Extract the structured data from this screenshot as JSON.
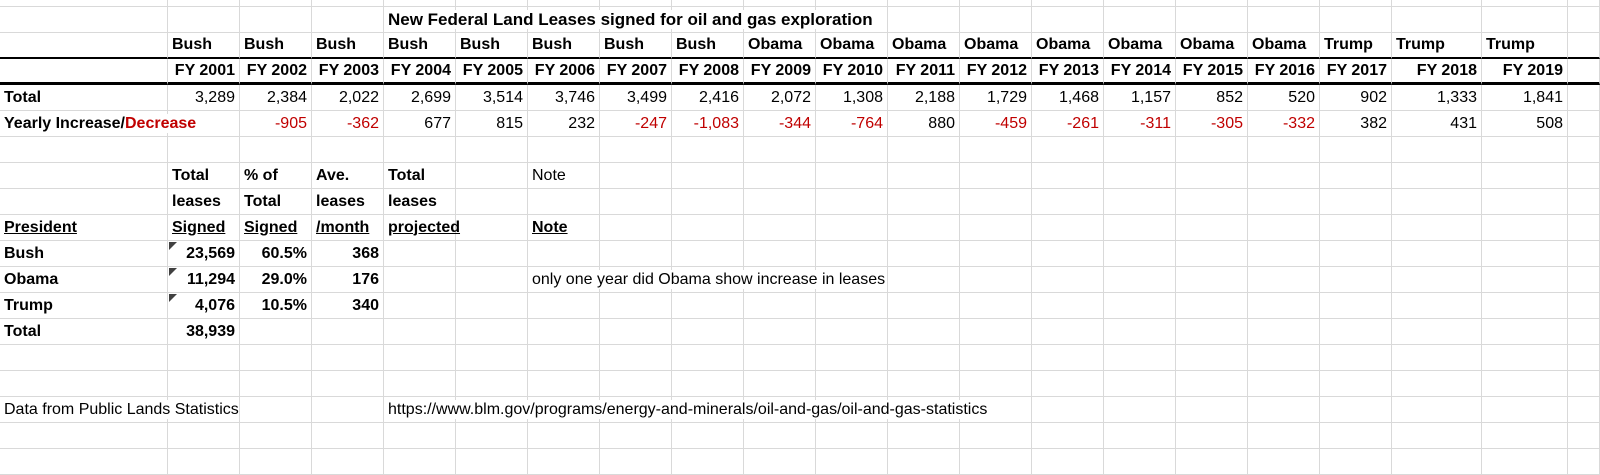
{
  "title": "New Federal Land Leases signed for oil and gas exploration",
  "lease_table": {
    "row_labels": {
      "total": "Total",
      "yearly_change_prefix": "Yearly Increase/",
      "yearly_change_suffix": "Decrease"
    },
    "columns": [
      {
        "president": "Bush",
        "fiscal_year": "FY 2001",
        "total": "3,289",
        "change": ""
      },
      {
        "president": "Bush",
        "fiscal_year": "FY 2002",
        "total": "2,384",
        "change": "-905"
      },
      {
        "president": "Bush",
        "fiscal_year": "FY 2003",
        "total": "2,022",
        "change": "-362"
      },
      {
        "president": "Bush",
        "fiscal_year": "FY 2004",
        "total": "2,699",
        "change": "677"
      },
      {
        "president": "Bush",
        "fiscal_year": "FY 2005",
        "total": "3,514",
        "change": "815"
      },
      {
        "president": "Bush",
        "fiscal_year": "FY 2006",
        "total": "3,746",
        "change": "232"
      },
      {
        "president": "Bush",
        "fiscal_year": "FY 2007",
        "total": "3,499",
        "change": "-247"
      },
      {
        "president": "Bush",
        "fiscal_year": "FY 2008",
        "total": "2,416",
        "change": "-1,083"
      },
      {
        "president": "Obama",
        "fiscal_year": "FY 2009",
        "total": "2,072",
        "change": "-344"
      },
      {
        "president": "Obama",
        "fiscal_year": "FY 2010",
        "total": "1,308",
        "change": "-764"
      },
      {
        "president": "Obama",
        "fiscal_year": "FY 2011",
        "total": "2,188",
        "change": "880"
      },
      {
        "president": "Obama",
        "fiscal_year": "FY 2012",
        "total": "1,729",
        "change": "-459"
      },
      {
        "president": "Obama",
        "fiscal_year": "FY 2013",
        "total": "1,468",
        "change": "-261"
      },
      {
        "president": "Obama",
        "fiscal_year": "FY 2014",
        "total": "1,157",
        "change": "-311"
      },
      {
        "president": "Obama",
        "fiscal_year": "FY 2015",
        "total": "852",
        "change": "-305"
      },
      {
        "president": "Obama",
        "fiscal_year": "FY 2016",
        "total": "520",
        "change": "-332"
      },
      {
        "president": "Trump",
        "fiscal_year": "FY 2017",
        "total": "902",
        "change": "382"
      },
      {
        "president": "Trump",
        "fiscal_year": "FY 2018",
        "total": "1,333",
        "change": "431"
      },
      {
        "president": "Trump",
        "fiscal_year": "FY 2019",
        "total": "1,841",
        "change": "508"
      }
    ]
  },
  "summary_table": {
    "headers": {
      "president": "President",
      "col1": [
        "Total",
        "leases",
        "Signed"
      ],
      "col2": [
        "% of",
        "Total",
        "Signed"
      ],
      "col3": [
        "Ave.",
        "leases",
        "/month"
      ],
      "col4": [
        "Total",
        "leases",
        "projected"
      ],
      "note_top": "Note",
      "note": "Note"
    },
    "rows": [
      {
        "label": "Bush",
        "total_signed": "23,569",
        "pct": "60.5%",
        "per_month": "368",
        "note": "",
        "flag": true
      },
      {
        "label": "Obama",
        "total_signed": "11,294",
        "pct": "29.0%",
        "per_month": "176",
        "note": "only one year did Obama show increase in leases",
        "flag": true
      },
      {
        "label": "Trump",
        "total_signed": "4,076",
        "pct": "10.5%",
        "per_month": "340",
        "note": "",
        "flag": true
      },
      {
        "label": "Total",
        "total_signed": "38,939",
        "pct": "",
        "per_month": "",
        "note": "",
        "flag": false
      }
    ]
  },
  "footer": {
    "source": "Data from Public Lands Statistics",
    "url": "https://www.blm.gov/programs/energy-and-minerals/oil-and-gas/oil-and-gas-statistics"
  },
  "colors": {
    "negative": "#c00000",
    "gridline": "#d9d9d9"
  }
}
